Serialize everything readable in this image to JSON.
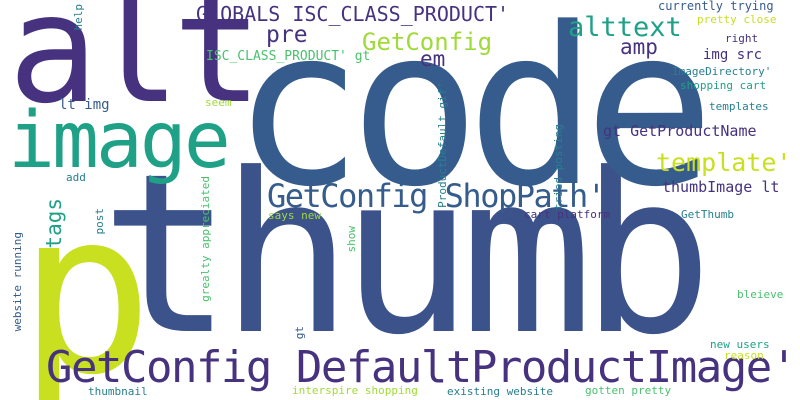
{
  "palette": {
    "dark_purple": "#46327e",
    "blue": "#365c8d",
    "slate_blue": "#3b528b",
    "teal": "#277f8e",
    "teal_green": "#1fa187",
    "green": "#4ac16d",
    "light_green": "#a0da39",
    "yellow_green": "#c8e020",
    "background": "#ffffff"
  },
  "words": {
    "thumb": "thumb",
    "code": "code",
    "alt": "alt",
    "image": "image",
    "getconfig_defaultproductimage": "GetConfig DefaultProductImage'",
    "getconfig_shoppath": "GetConfig ShopPath'",
    "globals_isc_class_product": "GLOBALS ISC_CLASS_PRODUCT'",
    "p": "p",
    "getconfig": "GetConfig",
    "alttext": "alttext",
    "template": "template'",
    "tags": "tags",
    "pre": "pre",
    "em": "em",
    "amp": "amp",
    "isc_class_product_gt": "ISC_CLASS_PRODUCT' gt",
    "lt_img": "lt img",
    "gt_getproductname": "gt GetProductName",
    "thumbimage_lt": "thumbImage lt",
    "img_src": "img src",
    "currently_trying": "currently trying",
    "pretty_close": "pretty close",
    "right": "right",
    "imagedirectory": "ImageDirectory'",
    "shopping_cart": "shopping cart",
    "templates": "templates",
    "help": "help",
    "tried_posting": "tried posting",
    "productdefault_gif": "ProductDefault gif'",
    "cart_platform": "cart platform",
    "getthumb": "GetThumb",
    "says_new": "says new",
    "show": "show",
    "seem": "seem",
    "add": "add",
    "post": "post",
    "website_running": "website running",
    "grealty_appreciated": "grealty appreciated",
    "gt": "gt",
    "bleieve": "bleieve",
    "new_users": "new users",
    "reason": "reason",
    "thumbnail": "thumbnail",
    "interspire_shopping": "interspire shopping",
    "existing_website": "existing website",
    "gotten_pretty": "gotten pretty"
  }
}
